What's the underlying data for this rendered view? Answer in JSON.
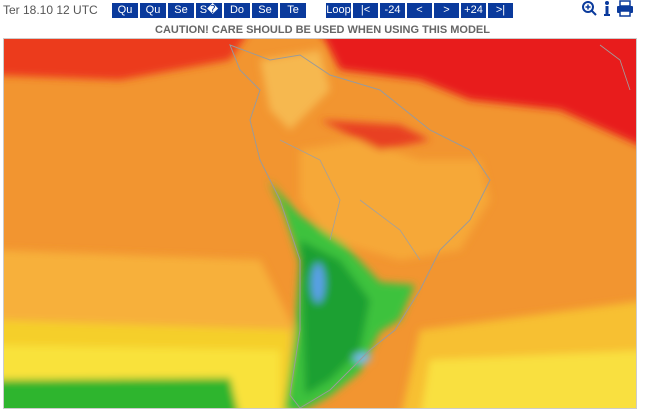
{
  "header": {
    "date": "Ter 18.10 12 UTC",
    "days": [
      "Qu",
      "Qu",
      "Se",
      "S�",
      "Do",
      "Se",
      "Te"
    ],
    "controls": [
      "Loop",
      "|<",
      "-24",
      "<",
      ">",
      "+24",
      ">|"
    ]
  },
  "caution": "CAUTION! CARE SHOULD BE USED WHEN USING THIS MODEL"
}
